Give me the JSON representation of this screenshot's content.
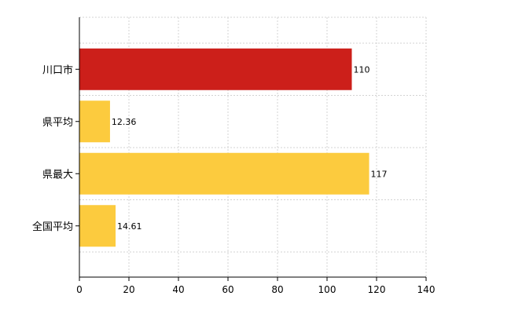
{
  "chart_data": {
    "type": "bar",
    "orientation": "horizontal",
    "title": "",
    "xlabel": "",
    "ylabel": "",
    "categories": [
      "川口市",
      "県平均",
      "県最大",
      "全国平均"
    ],
    "values": [
      110,
      12.36,
      117,
      14.61
    ],
    "value_labels": [
      "110",
      "12.36",
      "117",
      "14.61"
    ],
    "bar_colors": [
      "#cc1f1a",
      "#fccb3e",
      "#fccb3e",
      "#fccb3e"
    ],
    "xlim": [
      0,
      140
    ],
    "x_ticks": [
      0,
      20,
      40,
      60,
      80,
      100,
      120,
      140
    ],
    "x_tick_labels": [
      "0",
      "20",
      "40",
      "60",
      "80",
      "100",
      "120",
      "140"
    ],
    "grid": true,
    "legend": "none"
  }
}
